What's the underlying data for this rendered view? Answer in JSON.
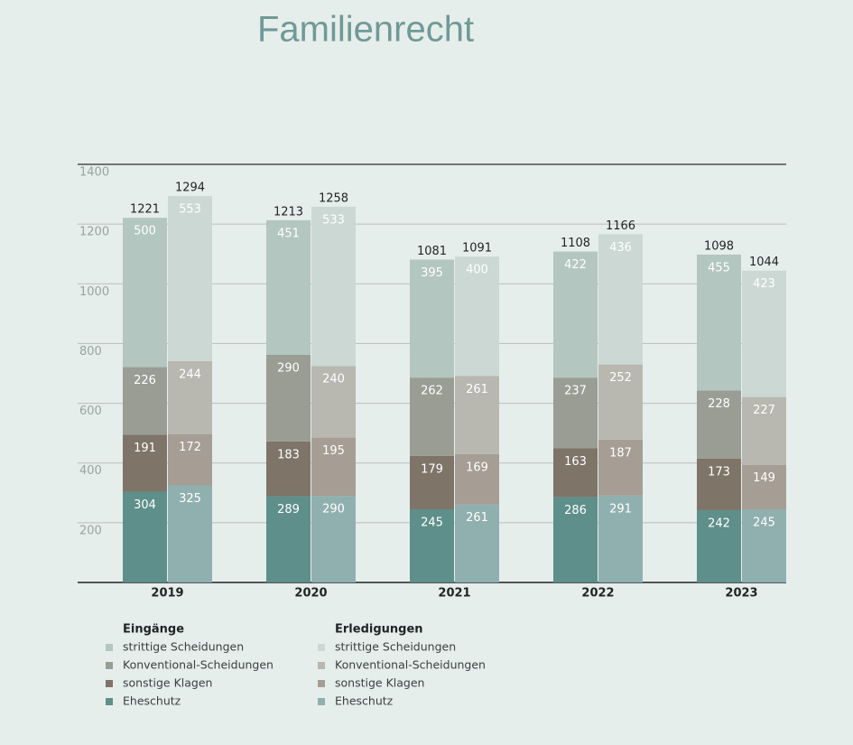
{
  "chart_data": {
    "type": "bar",
    "stacked": true,
    "title": "Familienrecht",
    "categories": [
      "2019",
      "2020",
      "2021",
      "2022",
      "2023"
    ],
    "groups": [
      {
        "name": "Eingänge",
        "totals": [
          1221,
          1213,
          1081,
          1108,
          1098
        ],
        "series": [
          {
            "name": "strittige Scheidungen",
            "color": "#b3c6c0",
            "values": [
              500,
              451,
              395,
              422,
              455
            ]
          },
          {
            "name": "Konventional-Scheidungen",
            "color": "#9a9d94",
            "values": [
              226,
              290,
              262,
              237,
              228
            ]
          },
          {
            "name": "sonstige Klagen",
            "color": "#7e7468",
            "values": [
              191,
              183,
              179,
              163,
              173
            ]
          },
          {
            "name": "Eheschutz",
            "color": "#5e8f8a",
            "values": [
              304,
              289,
              245,
              286,
              242
            ]
          }
        ]
      },
      {
        "name": "Erledigungen",
        "totals": [
          1294,
          1258,
          1091,
          1166,
          1044
        ],
        "series": [
          {
            "name": "strittige Scheidungen",
            "color": "#cbd8d4",
            "values": [
              553,
              533,
              400,
              436,
              423
            ]
          },
          {
            "name": "Konventional-Scheidungen",
            "color": "#b8b7b0",
            "values": [
              244,
              240,
              261,
              252,
              227
            ]
          },
          {
            "name": "sonstige Klagen",
            "color": "#a69d94",
            "values": [
              172,
              195,
              169,
              187,
              149
            ]
          },
          {
            "name": "Eheschutz",
            "color": "#8fb0ae",
            "values": [
              325,
              290,
              261,
              291,
              245
            ]
          }
        ]
      }
    ],
    "ylim": [
      0,
      1400
    ],
    "yticks": [
      200,
      400,
      600,
      800,
      1000,
      1200,
      1400
    ],
    "grid": true
  }
}
